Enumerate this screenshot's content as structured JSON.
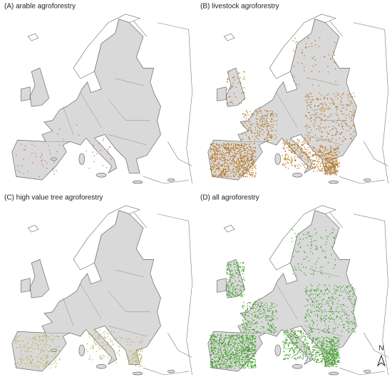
{
  "panels": [
    {
      "title": "(A) arable agroforestry"
    },
    {
      "title": "(B) livestock agroforestry"
    },
    {
      "title": "(C) high value tree agroforestry"
    },
    {
      "title": "(D) all agroforestry"
    }
  ],
  "north_arrow": "N"
}
